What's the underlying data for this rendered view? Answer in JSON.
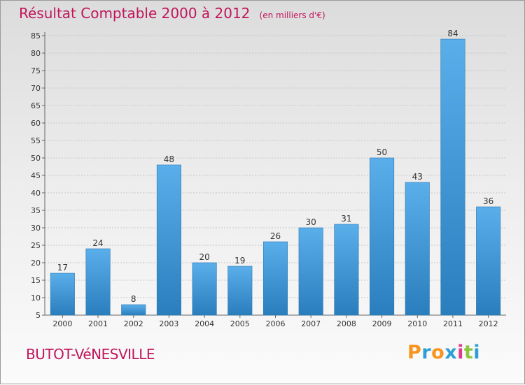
{
  "title": "Résultat Comptable 2000 à 2012",
  "unit_note": "(en milliers d'€)",
  "commune": "BUTOT-VéNESVILLE",
  "logo": {
    "text": "Proxiti",
    "colors": [
      "#f7941d",
      "#2e9fd6",
      "#f7941d",
      "#2e9fd6",
      "#e23a8a",
      "#8dc63f",
      "#2e9fd6"
    ]
  },
  "colors": {
    "accent": "#c0155a",
    "bar_top": "#5aaeea",
    "bar_bottom": "#2a7ebd"
  },
  "chart_data": {
    "type": "bar",
    "title": "Résultat Comptable 2000 à 2012",
    "categories": [
      "2000",
      "2001",
      "2002",
      "2003",
      "2004",
      "2005",
      "2006",
      "2007",
      "2008",
      "2009",
      "2010",
      "2011",
      "2012"
    ],
    "values": [
      17,
      24,
      8,
      48,
      20,
      19,
      26,
      30,
      31,
      50,
      43,
      84,
      36
    ],
    "ylim": [
      5,
      85
    ],
    "yticks": [
      5,
      10,
      15,
      20,
      25,
      30,
      35,
      40,
      45,
      50,
      55,
      60,
      65,
      70,
      75,
      80,
      85
    ],
    "grid": true,
    "data_labels": true
  }
}
